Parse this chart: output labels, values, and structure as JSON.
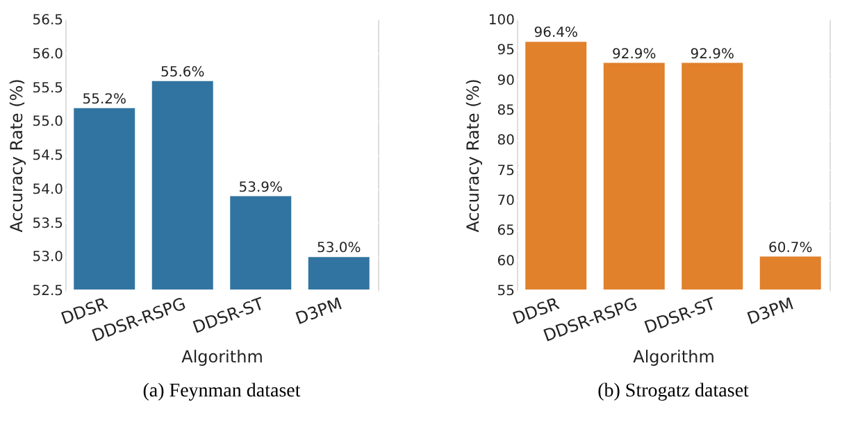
{
  "chart_data": [
    {
      "type": "bar",
      "xlabel": "Algorithm",
      "ylabel": "Accuracy Rate (%)",
      "categories": [
        "DDSR",
        "DDSR-RSPG",
        "DDSR-ST",
        "D3PM"
      ],
      "values": [
        55.2,
        55.6,
        53.9,
        53.0
      ],
      "color": "#3274a1",
      "value_labels": [
        "55.2%",
        "55.6%",
        "53.9%",
        "53.0%"
      ],
      "ylim": [
        52.5,
        56.5
      ],
      "yticks": [
        {
          "value": 52.5,
          "label": "52.5"
        },
        {
          "value": 53,
          "label": "53.0"
        },
        {
          "value": 53.5,
          "label": "53.5"
        },
        {
          "value": 54,
          "label": "54.0"
        },
        {
          "value": 54.5,
          "label": "54.5"
        },
        {
          "value": 55,
          "label": "55.0"
        },
        {
          "value": 55.5,
          "label": "55.5"
        },
        {
          "value": 56,
          "label": "56.0"
        },
        {
          "value": 56.5,
          "label": "56.5"
        }
      ],
      "grid": "y",
      "annotations": [
        "(a) Feynman dataset"
      ]
    },
    {
      "type": "bar",
      "xlabel": "Algorithm",
      "ylabel": "Accuracy Rate (%)",
      "categories": [
        "DDSR",
        "DDSR-RSPG",
        "DDSR-ST",
        "D3PM"
      ],
      "values": [
        96.4,
        92.9,
        92.9,
        60.7
      ],
      "color": "#e1812c",
      "value_labels": [
        "96.4%",
        "92.9%",
        "92.9%",
        "60.7%"
      ],
      "ylim": [
        55,
        100
      ],
      "yticks": [
        55,
        60,
        65,
        70,
        75,
        80,
        85,
        90,
        95,
        100
      ],
      "grid": "y",
      "annotations": [
        "(b) Strogatz dataset"
      ]
    }
  ]
}
